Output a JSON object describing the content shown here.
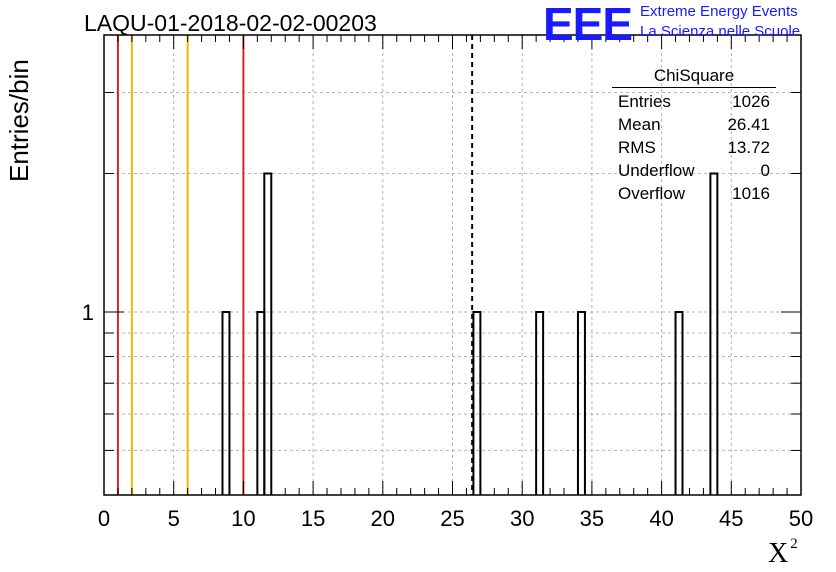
{
  "chart_data": {
    "type": "bar",
    "title": "LAQU-01-2018-02-02-00203",
    "xlabel": "X",
    "xlabel_sup": "2",
    "ylabel": "Entries/bin",
    "xlim": [
      0,
      50
    ],
    "ylim": [
      0.4,
      4
    ],
    "ylog": true,
    "grid": true,
    "x_ticks": [
      "0",
      "5",
      "10",
      "15",
      "20",
      "25",
      "30",
      "35",
      "40",
      "45",
      "50"
    ],
    "y_ticks": [
      "1"
    ],
    "bin_width": 0.5,
    "bins": [
      {
        "x0": 8.5,
        "value": 1
      },
      {
        "x0": 11.0,
        "value": 1
      },
      {
        "x0": 11.5,
        "value": 2
      },
      {
        "x0": 26.5,
        "value": 1
      },
      {
        "x0": 31.0,
        "value": 1
      },
      {
        "x0": 34.0,
        "value": 1
      },
      {
        "x0": 41.0,
        "value": 1
      },
      {
        "x0": 43.5,
        "value": 2
      }
    ],
    "vlines": [
      {
        "x": 1,
        "color": "#d62728",
        "style": "solid"
      },
      {
        "x": 2,
        "color": "#f2b705",
        "style": "solid"
      },
      {
        "x": 6,
        "color": "#f2b705",
        "style": "solid"
      },
      {
        "x": 10,
        "color": "#d62728",
        "style": "solid"
      },
      {
        "x": 26.41,
        "color": "#000000",
        "style": "dashed"
      }
    ],
    "stats_box": {
      "title": "ChiSquare",
      "rows": [
        {
          "label": "Entries",
          "value": "1026"
        },
        {
          "label": "Mean",
          "value": "26.41"
        },
        {
          "label": "RMS",
          "value": "13.72"
        },
        {
          "label": "Underflow",
          "value": "0"
        },
        {
          "label": "Overflow",
          "value": "1016"
        }
      ]
    }
  },
  "logo": {
    "mark": "EEE",
    "line1": "Extreme Energy Events",
    "line2": "La Scienza nelle Scuole",
    "color": "#1a1aff"
  }
}
